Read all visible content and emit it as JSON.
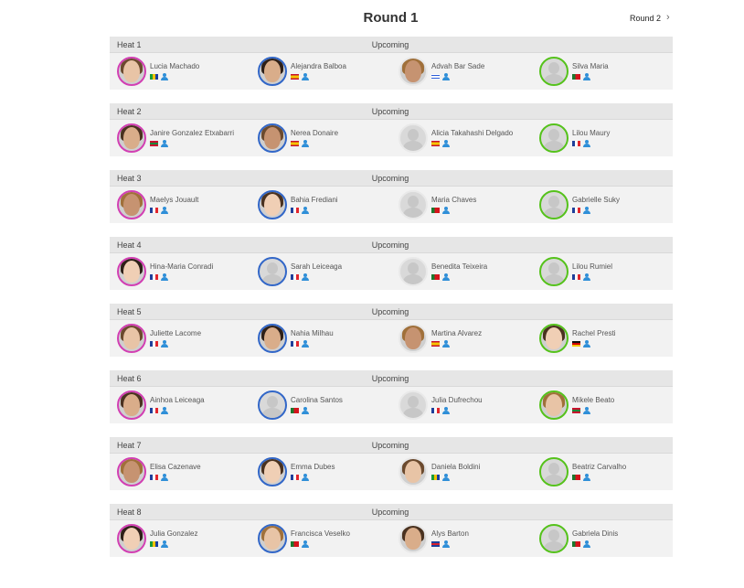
{
  "page": {
    "title": "Round 1"
  },
  "nav": {
    "next_round_label": "Round 2"
  },
  "colors": {
    "slot_1": "#d23fb3",
    "slot_2": "#3267c8",
    "slot_3": "#e9e9e9",
    "slot_4": "#55c21b",
    "profile_icon": "#2f8fd8"
  },
  "heats": [
    {
      "name": "Heat 1",
      "status": "Upcoming",
      "athletes": [
        {
          "name": "Lucia Machado",
          "country": "BRA",
          "photo": true
        },
        {
          "name": "Alejandra Balboa",
          "country": "ESP",
          "photo": true
        },
        {
          "name": "Advah Bar Sade",
          "country": "ISR",
          "photo": true
        },
        {
          "name": "Silva Maria",
          "country": "POR",
          "photo": false
        }
      ]
    },
    {
      "name": "Heat 2",
      "status": "Upcoming",
      "athletes": [
        {
          "name": "Janire Gonzalez Etxabarri",
          "country": "EUS",
          "photo": true
        },
        {
          "name": "Nerea Donaire",
          "country": "ESP",
          "photo": true
        },
        {
          "name": "Alicia Takahashi Delgado",
          "country": "ESP",
          "photo": false
        },
        {
          "name": "Lilou Maury",
          "country": "FRA",
          "photo": false
        }
      ]
    },
    {
      "name": "Heat 3",
      "status": "Upcoming",
      "athletes": [
        {
          "name": "Maelys Jouault",
          "country": "FRA",
          "photo": true
        },
        {
          "name": "Bahia Frediani",
          "country": "FRA",
          "photo": true
        },
        {
          "name": "Maria Chaves",
          "country": "POR",
          "photo": false
        },
        {
          "name": "Gabrielle Suky",
          "country": "FRA",
          "photo": false
        }
      ]
    },
    {
      "name": "Heat 4",
      "status": "Upcoming",
      "athletes": [
        {
          "name": "Hina-Maria Conradi",
          "country": "FRA",
          "photo": true
        },
        {
          "name": "Sarah Leiceaga",
          "country": "FRA",
          "photo": false
        },
        {
          "name": "Benedita Teixeira",
          "country": "POR",
          "photo": false
        },
        {
          "name": "Lilou Rumiel",
          "country": "FRA",
          "photo": false
        }
      ]
    },
    {
      "name": "Heat 5",
      "status": "Upcoming",
      "athletes": [
        {
          "name": "Juliette Lacome",
          "country": "FRA",
          "photo": true
        },
        {
          "name": "Nahia Milhau",
          "country": "FRA",
          "photo": true
        },
        {
          "name": "Martina Alvarez",
          "country": "ESP",
          "photo": true
        },
        {
          "name": "Rachel Presti",
          "country": "GER",
          "photo": true
        }
      ]
    },
    {
      "name": "Heat 6",
      "status": "Upcoming",
      "athletes": [
        {
          "name": "Ainhoa Leiceaga",
          "country": "FRA",
          "photo": true
        },
        {
          "name": "Carolina Santos",
          "country": "POR",
          "photo": false
        },
        {
          "name": "Julia Dufrechou",
          "country": "FRA",
          "photo": false
        },
        {
          "name": "Mikele Beato",
          "country": "EUS",
          "photo": true
        }
      ]
    },
    {
      "name": "Heat 7",
      "status": "Upcoming",
      "athletes": [
        {
          "name": "Elisa Cazenave",
          "country": "FRA",
          "photo": true
        },
        {
          "name": "Emma Dubes",
          "country": "FRA",
          "photo": true
        },
        {
          "name": "Daniela Boldini",
          "country": "BRA",
          "photo": true
        },
        {
          "name": "Beatriz Carvalho",
          "country": "POR",
          "photo": false
        }
      ]
    },
    {
      "name": "Heat 8",
      "status": "Upcoming",
      "athletes": [
        {
          "name": "Julia Gonzalez",
          "country": "BRA",
          "photo": true
        },
        {
          "name": "Francisca Veselko",
          "country": "POR",
          "photo": true
        },
        {
          "name": "Alys Barton",
          "country": "GBR",
          "photo": true
        },
        {
          "name": "Gabriela Dinis",
          "country": "POR",
          "photo": false
        }
      ]
    }
  ]
}
